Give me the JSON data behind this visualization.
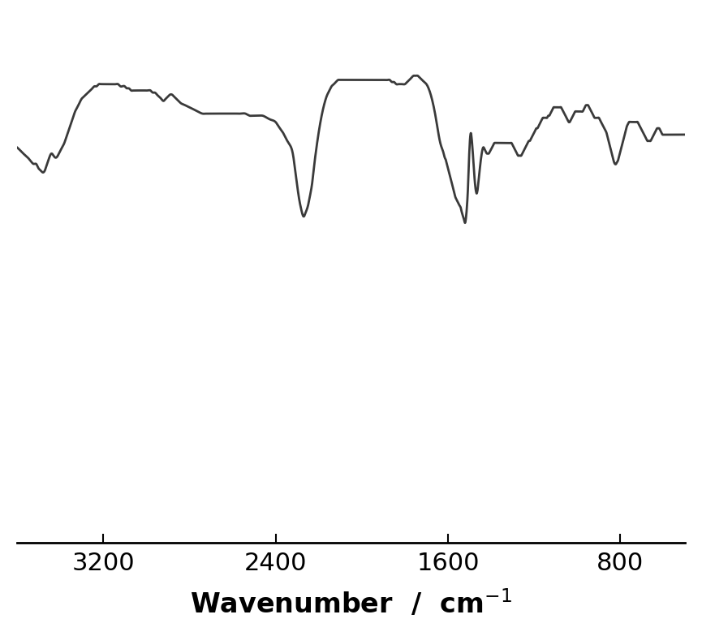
{
  "xmin": 3600,
  "xmax": 500,
  "ymin": -150,
  "ymax": 100,
  "xlabel": "Wavenumber  /  cm$^{-1}$",
  "xticks": [
    3200,
    2400,
    1600,
    800
  ],
  "line_color": "#3a3a3a",
  "line_width": 2.0,
  "bg_color": "#ffffff",
  "spectrum_points": [
    [
      3600,
      38
    ],
    [
      3580,
      36
    ],
    [
      3560,
      34
    ],
    [
      3540,
      32
    ],
    [
      3520,
      30
    ],
    [
      3510,
      30
    ],
    [
      3500,
      28
    ],
    [
      3490,
      27
    ],
    [
      3480,
      26
    ],
    [
      3470,
      27
    ],
    [
      3460,
      30
    ],
    [
      3450,
      33
    ],
    [
      3440,
      35
    ],
    [
      3430,
      34
    ],
    [
      3420,
      33
    ],
    [
      3410,
      34
    ],
    [
      3400,
      36
    ],
    [
      3390,
      38
    ],
    [
      3380,
      40
    ],
    [
      3370,
      43
    ],
    [
      3360,
      46
    ],
    [
      3350,
      49
    ],
    [
      3340,
      52
    ],
    [
      3330,
      55
    ],
    [
      3320,
      57
    ],
    [
      3310,
      59
    ],
    [
      3300,
      61
    ],
    [
      3290,
      62
    ],
    [
      3280,
      63
    ],
    [
      3270,
      64
    ],
    [
      3260,
      65
    ],
    [
      3250,
      66
    ],
    [
      3240,
      67
    ],
    [
      3230,
      67
    ],
    [
      3220,
      68
    ],
    [
      3210,
      68
    ],
    [
      3200,
      68
    ],
    [
      3190,
      68
    ],
    [
      3180,
      68
    ],
    [
      3170,
      68
    ],
    [
      3160,
      68
    ],
    [
      3150,
      68
    ],
    [
      3140,
      68
    ],
    [
      3130,
      68
    ],
    [
      3120,
      67
    ],
    [
      3110,
      67
    ],
    [
      3100,
      67
    ],
    [
      3090,
      66
    ],
    [
      3080,
      66
    ],
    [
      3070,
      65
    ],
    [
      3060,
      65
    ],
    [
      3050,
      65
    ],
    [
      3040,
      65
    ],
    [
      3030,
      65
    ],
    [
      3020,
      65
    ],
    [
      3010,
      65
    ],
    [
      3000,
      65
    ],
    [
      2990,
      65
    ],
    [
      2980,
      65
    ],
    [
      2970,
      64
    ],
    [
      2960,
      64
    ],
    [
      2950,
      63
    ],
    [
      2940,
      62
    ],
    [
      2930,
      61
    ],
    [
      2920,
      60
    ],
    [
      2910,
      61
    ],
    [
      2900,
      62
    ],
    [
      2890,
      63
    ],
    [
      2880,
      63
    ],
    [
      2870,
      62
    ],
    [
      2860,
      61
    ],
    [
      2850,
      60
    ],
    [
      2840,
      59
    ],
    [
      2820,
      58
    ],
    [
      2800,
      57
    ],
    [
      2780,
      56
    ],
    [
      2760,
      55
    ],
    [
      2740,
      54
    ],
    [
      2720,
      54
    ],
    [
      2700,
      54
    ],
    [
      2680,
      54
    ],
    [
      2660,
      54
    ],
    [
      2640,
      54
    ],
    [
      2620,
      54
    ],
    [
      2600,
      54
    ],
    [
      2580,
      54
    ],
    [
      2560,
      54
    ],
    [
      2540,
      54
    ],
    [
      2520,
      53
    ],
    [
      2500,
      53
    ],
    [
      2480,
      53
    ],
    [
      2460,
      53
    ],
    [
      2440,
      52
    ],
    [
      2420,
      51
    ],
    [
      2400,
      50
    ],
    [
      2380,
      47
    ],
    [
      2360,
      44
    ],
    [
      2340,
      40
    ],
    [
      2320,
      35
    ],
    [
      2310,
      28
    ],
    [
      2300,
      20
    ],
    [
      2290,
      13
    ],
    [
      2280,
      8
    ],
    [
      2270,
      5
    ],
    [
      2260,
      7
    ],
    [
      2250,
      10
    ],
    [
      2240,
      15
    ],
    [
      2230,
      21
    ],
    [
      2220,
      30
    ],
    [
      2210,
      38
    ],
    [
      2200,
      45
    ],
    [
      2190,
      51
    ],
    [
      2180,
      56
    ],
    [
      2170,
      60
    ],
    [
      2160,
      63
    ],
    [
      2150,
      65
    ],
    [
      2140,
      67
    ],
    [
      2130,
      68
    ],
    [
      2120,
      69
    ],
    [
      2110,
      70
    ],
    [
      2100,
      70
    ],
    [
      2090,
      70
    ],
    [
      2080,
      70
    ],
    [
      2070,
      70
    ],
    [
      2060,
      70
    ],
    [
      2050,
      70
    ],
    [
      2040,
      70
    ],
    [
      2030,
      70
    ],
    [
      2020,
      70
    ],
    [
      2010,
      70
    ],
    [
      2000,
      70
    ],
    [
      1990,
      70
    ],
    [
      1980,
      70
    ],
    [
      1970,
      70
    ],
    [
      1960,
      70
    ],
    [
      1950,
      70
    ],
    [
      1940,
      70
    ],
    [
      1930,
      70
    ],
    [
      1920,
      70
    ],
    [
      1910,
      70
    ],
    [
      1900,
      70
    ],
    [
      1890,
      70
    ],
    [
      1880,
      70
    ],
    [
      1870,
      70
    ],
    [
      1860,
      69
    ],
    [
      1850,
      69
    ],
    [
      1840,
      68
    ],
    [
      1830,
      68
    ],
    [
      1820,
      68
    ],
    [
      1810,
      68
    ],
    [
      1800,
      68
    ],
    [
      1790,
      69
    ],
    [
      1780,
      70
    ],
    [
      1770,
      71
    ],
    [
      1760,
      72
    ],
    [
      1750,
      72
    ],
    [
      1740,
      72
    ],
    [
      1730,
      71
    ],
    [
      1720,
      70
    ],
    [
      1710,
      69
    ],
    [
      1700,
      68
    ],
    [
      1690,
      66
    ],
    [
      1680,
      63
    ],
    [
      1670,
      59
    ],
    [
      1660,
      54
    ],
    [
      1650,
      48
    ],
    [
      1640,
      42
    ],
    [
      1630,
      38
    ],
    [
      1620,
      35
    ],
    [
      1615,
      33
    ],
    [
      1610,
      32
    ],
    [
      1605,
      30
    ],
    [
      1600,
      28
    ],
    [
      1595,
      26
    ],
    [
      1590,
      24
    ],
    [
      1585,
      22
    ],
    [
      1580,
      20
    ],
    [
      1575,
      18
    ],
    [
      1570,
      16
    ],
    [
      1565,
      14
    ],
    [
      1560,
      13
    ],
    [
      1555,
      12
    ],
    [
      1550,
      11
    ],
    [
      1545,
      10
    ],
    [
      1540,
      9
    ],
    [
      1538,
      8
    ],
    [
      1536,
      7
    ],
    [
      1533,
      6
    ],
    [
      1530,
      5
    ],
    [
      1527,
      4
    ],
    [
      1524,
      3
    ],
    [
      1522,
      2
    ],
    [
      1520,
      2
    ],
    [
      1518,
      3
    ],
    [
      1516,
      5
    ],
    [
      1514,
      7
    ],
    [
      1512,
      10
    ],
    [
      1510,
      13
    ],
    [
      1508,
      17
    ],
    [
      1506,
      22
    ],
    [
      1504,
      28
    ],
    [
      1502,
      34
    ],
    [
      1500,
      38
    ],
    [
      1498,
      42
    ],
    [
      1496,
      44
    ],
    [
      1494,
      45
    ],
    [
      1492,
      44
    ],
    [
      1490,
      42
    ],
    [
      1488,
      40
    ],
    [
      1486,
      37
    ],
    [
      1484,
      34
    ],
    [
      1482,
      31
    ],
    [
      1480,
      28
    ],
    [
      1478,
      25
    ],
    [
      1476,
      22
    ],
    [
      1474,
      20
    ],
    [
      1472,
      18
    ],
    [
      1470,
      17
    ],
    [
      1468,
      16
    ],
    [
      1466,
      16
    ],
    [
      1464,
      17
    ],
    [
      1462,
      18
    ],
    [
      1460,
      20
    ],
    [
      1455,
      25
    ],
    [
      1450,
      30
    ],
    [
      1445,
      34
    ],
    [
      1440,
      37
    ],
    [
      1435,
      38
    ],
    [
      1430,
      37
    ],
    [
      1425,
      36
    ],
    [
      1420,
      35
    ],
    [
      1415,
      35
    ],
    [
      1410,
      35
    ],
    [
      1405,
      36
    ],
    [
      1400,
      37
    ],
    [
      1395,
      38
    ],
    [
      1390,
      39
    ],
    [
      1385,
      40
    ],
    [
      1380,
      40
    ],
    [
      1375,
      40
    ],
    [
      1370,
      40
    ],
    [
      1365,
      40
    ],
    [
      1360,
      40
    ],
    [
      1355,
      40
    ],
    [
      1350,
      40
    ],
    [
      1345,
      40
    ],
    [
      1340,
      40
    ],
    [
      1335,
      40
    ],
    [
      1330,
      40
    ],
    [
      1325,
      40
    ],
    [
      1320,
      40
    ],
    [
      1315,
      40
    ],
    [
      1310,
      40
    ],
    [
      1305,
      40
    ],
    [
      1300,
      39
    ],
    [
      1295,
      38
    ],
    [
      1290,
      37
    ],
    [
      1285,
      36
    ],
    [
      1280,
      35
    ],
    [
      1275,
      34
    ],
    [
      1270,
      34
    ],
    [
      1265,
      34
    ],
    [
      1260,
      34
    ],
    [
      1255,
      35
    ],
    [
      1250,
      36
    ],
    [
      1245,
      37
    ],
    [
      1240,
      38
    ],
    [
      1235,
      39
    ],
    [
      1230,
      40
    ],
    [
      1225,
      41
    ],
    [
      1220,
      41
    ],
    [
      1215,
      42
    ],
    [
      1210,
      43
    ],
    [
      1205,
      44
    ],
    [
      1200,
      45
    ],
    [
      1195,
      46
    ],
    [
      1190,
      47
    ],
    [
      1185,
      47
    ],
    [
      1180,
      48
    ],
    [
      1175,
      49
    ],
    [
      1170,
      50
    ],
    [
      1165,
      51
    ],
    [
      1160,
      52
    ],
    [
      1155,
      52
    ],
    [
      1150,
      52
    ],
    [
      1145,
      52
    ],
    [
      1140,
      52
    ],
    [
      1135,
      53
    ],
    [
      1130,
      53
    ],
    [
      1125,
      54
    ],
    [
      1120,
      55
    ],
    [
      1115,
      56
    ],
    [
      1110,
      57
    ],
    [
      1105,
      57
    ],
    [
      1100,
      57
    ],
    [
      1095,
      57
    ],
    [
      1090,
      57
    ],
    [
      1085,
      57
    ],
    [
      1080,
      57
    ],
    [
      1075,
      57
    ],
    [
      1070,
      56
    ],
    [
      1065,
      55
    ],
    [
      1060,
      54
    ],
    [
      1055,
      53
    ],
    [
      1050,
      52
    ],
    [
      1045,
      51
    ],
    [
      1040,
      50
    ],
    [
      1035,
      50
    ],
    [
      1030,
      51
    ],
    [
      1025,
      52
    ],
    [
      1020,
      53
    ],
    [
      1015,
      54
    ],
    [
      1010,
      55
    ],
    [
      1005,
      55
    ],
    [
      1000,
      55
    ],
    [
      995,
      55
    ],
    [
      990,
      55
    ],
    [
      985,
      55
    ],
    [
      980,
      55
    ],
    [
      975,
      55
    ],
    [
      970,
      56
    ],
    [
      965,
      57
    ],
    [
      960,
      58
    ],
    [
      955,
      58
    ],
    [
      950,
      58
    ],
    [
      945,
      57
    ],
    [
      940,
      56
    ],
    [
      935,
      55
    ],
    [
      930,
      54
    ],
    [
      925,
      53
    ],
    [
      920,
      52
    ],
    [
      915,
      52
    ],
    [
      910,
      52
    ],
    [
      905,
      52
    ],
    [
      900,
      52
    ],
    [
      895,
      51
    ],
    [
      890,
      50
    ],
    [
      885,
      49
    ],
    [
      880,
      48
    ],
    [
      875,
      47
    ],
    [
      870,
      46
    ],
    [
      865,
      45
    ],
    [
      860,
      43
    ],
    [
      855,
      41
    ],
    [
      850,
      39
    ],
    [
      845,
      37
    ],
    [
      840,
      35
    ],
    [
      835,
      33
    ],
    [
      830,
      31
    ],
    [
      825,
      30
    ],
    [
      820,
      30
    ],
    [
      815,
      31
    ],
    [
      810,
      32
    ],
    [
      805,
      34
    ],
    [
      800,
      36
    ],
    [
      795,
      38
    ],
    [
      790,
      40
    ],
    [
      785,
      42
    ],
    [
      780,
      44
    ],
    [
      775,
      46
    ],
    [
      770,
      48
    ],
    [
      765,
      49
    ],
    [
      760,
      50
    ],
    [
      755,
      50
    ],
    [
      750,
      50
    ],
    [
      745,
      50
    ],
    [
      740,
      50
    ],
    [
      735,
      50
    ],
    [
      730,
      50
    ],
    [
      725,
      50
    ],
    [
      720,
      50
    ],
    [
      715,
      49
    ],
    [
      710,
      48
    ],
    [
      705,
      47
    ],
    [
      700,
      46
    ],
    [
      695,
      45
    ],
    [
      690,
      44
    ],
    [
      685,
      43
    ],
    [
      680,
      42
    ],
    [
      675,
      41
    ],
    [
      670,
      41
    ],
    [
      665,
      41
    ],
    [
      660,
      41
    ],
    [
      655,
      42
    ],
    [
      650,
      43
    ],
    [
      645,
      44
    ],
    [
      640,
      45
    ],
    [
      635,
      46
    ],
    [
      630,
      47
    ],
    [
      625,
      47
    ],
    [
      620,
      47
    ],
    [
      615,
      46
    ],
    [
      610,
      45
    ],
    [
      605,
      44
    ],
    [
      600,
      44
    ],
    [
      595,
      44
    ],
    [
      590,
      44
    ],
    [
      585,
      44
    ],
    [
      580,
      44
    ],
    [
      575,
      44
    ],
    [
      570,
      44
    ],
    [
      565,
      44
    ],
    [
      560,
      44
    ],
    [
      555,
      44
    ],
    [
      550,
      44
    ],
    [
      540,
      44
    ],
    [
      530,
      44
    ],
    [
      520,
      44
    ],
    [
      510,
      44
    ],
    [
      500,
      44
    ]
  ]
}
